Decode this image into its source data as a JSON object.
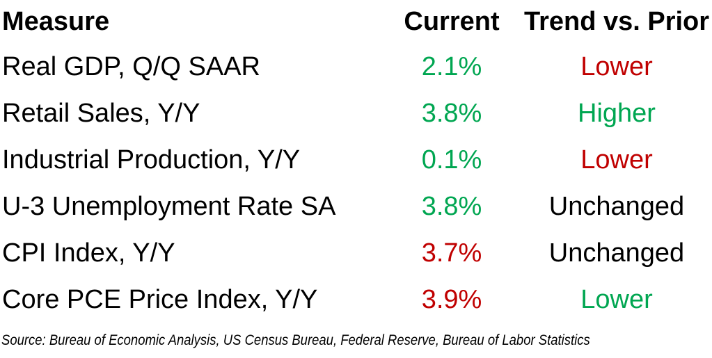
{
  "header": {
    "measure": "Measure",
    "current": "Current",
    "trend": "Trend vs. Prior"
  },
  "rows": [
    {
      "measure": "Real GDP, Q/Q SAAR",
      "current": "2.1%",
      "current_color": "green",
      "trend": "Lower",
      "trend_color": "red"
    },
    {
      "measure": "Retail Sales, Y/Y",
      "current": "3.8%",
      "current_color": "green",
      "trend": "Higher",
      "trend_color": "green"
    },
    {
      "measure": "Industrial Production, Y/Y",
      "current": "0.1%",
      "current_color": "green",
      "trend": "Lower",
      "trend_color": "red"
    },
    {
      "measure": "U-3 Unemployment Rate SA",
      "current": "3.8%",
      "current_color": "green",
      "trend": "Unchanged",
      "trend_color": "black"
    },
    {
      "measure": "CPI Index, Y/Y",
      "current": "3.7%",
      "current_color": "red",
      "trend": "Unchanged",
      "trend_color": "black"
    },
    {
      "measure": "Core PCE Price Index, Y/Y",
      "current": "3.9%",
      "current_color": "red",
      "trend": "Lower",
      "trend_color": "green"
    }
  ],
  "source_note": "Source: Bureau of Economic Analysis, US Census Bureau, Federal Reserve, Bureau of Labor Statistics",
  "colors": {
    "green": "#00A651",
    "red": "#C00000",
    "black": "#000000"
  },
  "chart_data": {
    "type": "table",
    "title": "",
    "columns": [
      "Measure",
      "Current",
      "Trend vs. Prior"
    ],
    "rows": [
      [
        "Real GDP, Q/Q SAAR",
        "2.1%",
        "Lower"
      ],
      [
        "Retail Sales, Y/Y",
        "3.8%",
        "Higher"
      ],
      [
        "Industrial Production, Y/Y",
        "0.1%",
        "Lower"
      ],
      [
        "U-3 Unemployment Rate SA",
        "3.8%",
        "Unchanged"
      ],
      [
        "CPI Index, Y/Y",
        "3.7%",
        "Unchanged"
      ],
      [
        "Core PCE Price Index, Y/Y",
        "3.9%",
        "Lower"
      ]
    ],
    "value_colors": [
      "green",
      "green",
      "green",
      "green",
      "red",
      "red"
    ],
    "trend_colors": [
      "red",
      "green",
      "red",
      "black",
      "black",
      "green"
    ],
    "source": "Source: Bureau of Economic Analysis, US Census Bureau, Federal Reserve, Bureau of Labor Statistics"
  }
}
